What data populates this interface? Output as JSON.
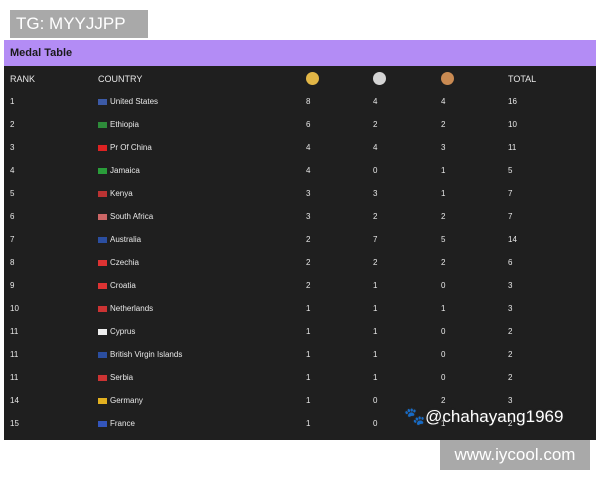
{
  "watermarks": {
    "top": "TG: MYYJJPP",
    "weibo": "@chahayang1969",
    "site": "www.iycool.com"
  },
  "header": {
    "title": "Medal Table"
  },
  "table": {
    "columns": {
      "rank": "RANK",
      "country": "COUNTRY",
      "total": "TOTAL"
    },
    "rows": [
      [
        "1",
        "United States",
        8,
        4,
        4,
        16
      ],
      [
        "2",
        "Ethiopia",
        6,
        2,
        2,
        10
      ],
      [
        "3",
        "Pr Of China",
        4,
        4,
        3,
        11
      ],
      [
        "4",
        "Jamaica",
        4,
        0,
        1,
        5
      ],
      [
        "5",
        "Kenya",
        3,
        3,
        1,
        7
      ],
      [
        "6",
        "South Africa",
        3,
        2,
        2,
        7
      ],
      [
        "7",
        "Australia",
        2,
        7,
        5,
        14
      ],
      [
        "8",
        "Czechia",
        2,
        2,
        2,
        6
      ],
      [
        "9",
        "Croatia",
        2,
        1,
        0,
        3
      ],
      [
        "10",
        "Netherlands",
        1,
        1,
        1,
        3
      ],
      [
        "11",
        "Cyprus",
        1,
        1,
        0,
        2
      ],
      [
        "11",
        "British Virgin Islands",
        1,
        1,
        0,
        2
      ],
      [
        "11",
        "Serbia",
        1,
        1,
        0,
        2
      ],
      [
        "14",
        "Germany",
        1,
        0,
        2,
        3
      ],
      [
        "15",
        "France",
        1,
        0,
        1,
        2
      ]
    ]
  }
}
